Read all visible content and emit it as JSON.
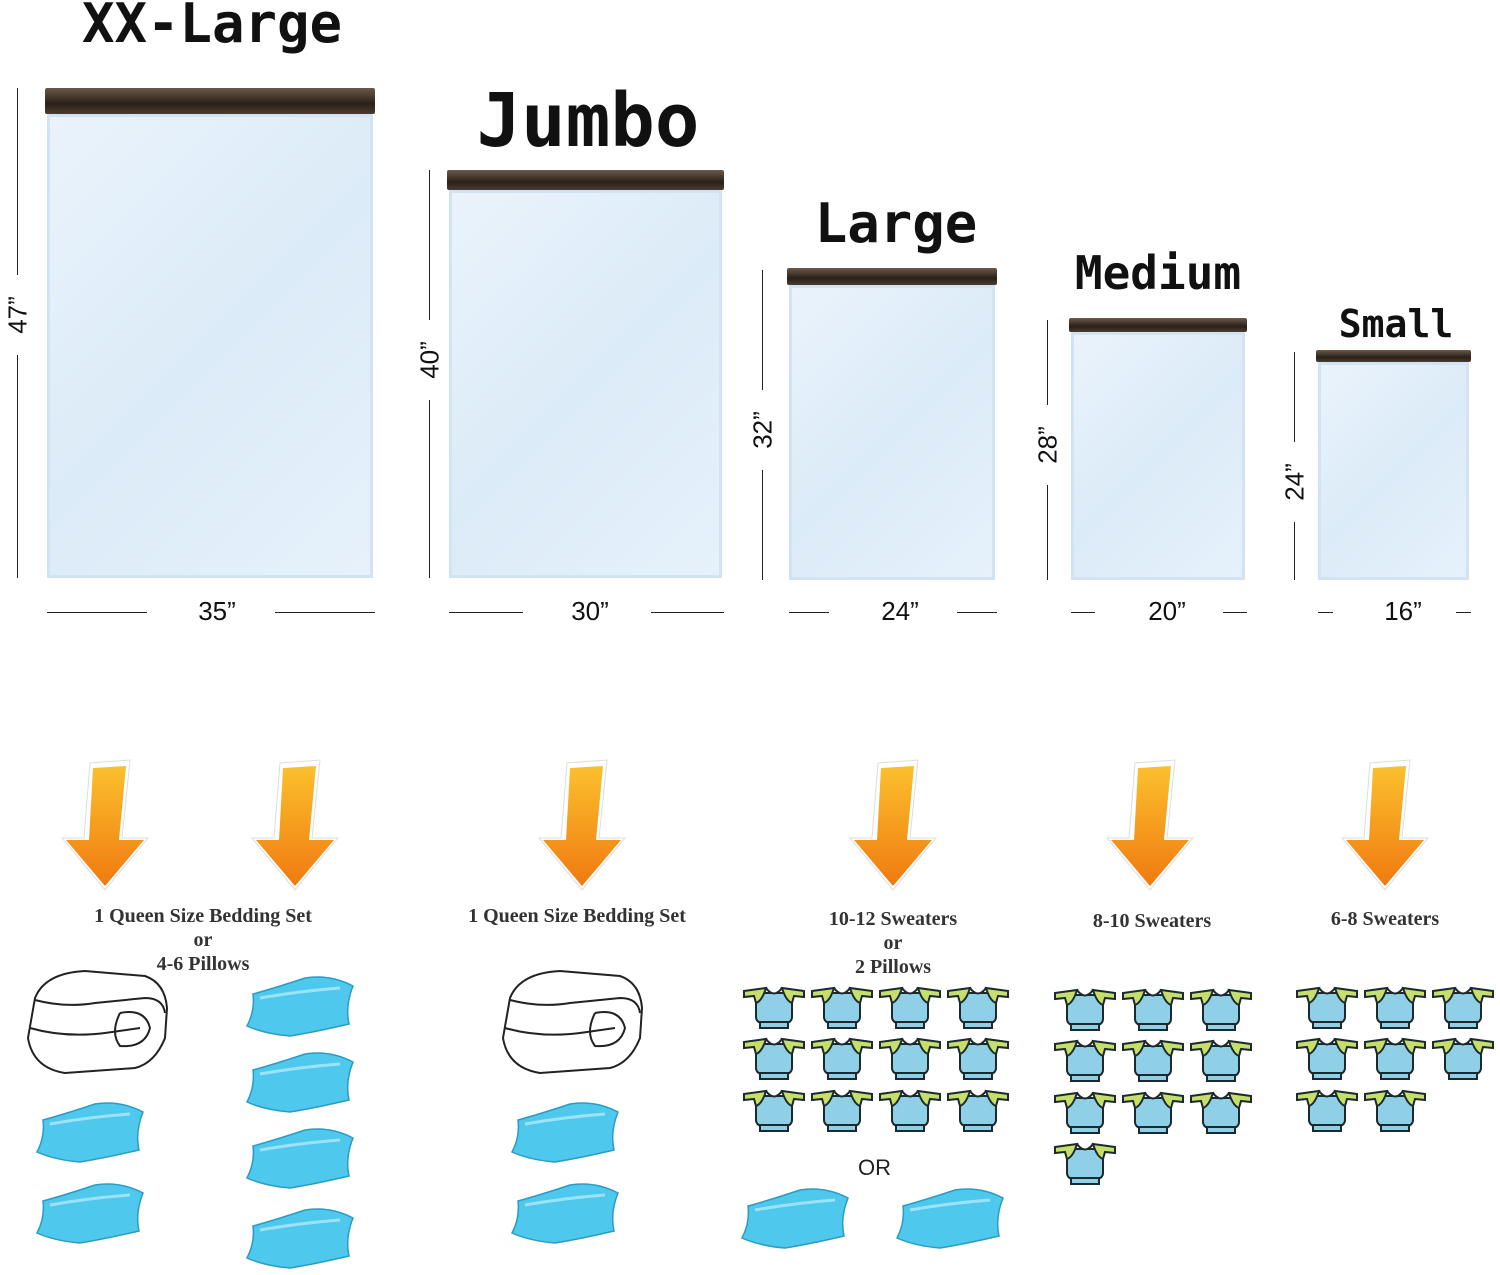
{
  "bags": [
    {
      "name": "XX-Large",
      "height": "47”",
      "width": "35”"
    },
    {
      "name": "Jumbo",
      "height": "40”",
      "width": "30”"
    },
    {
      "name": "Large",
      "height": "32”",
      "width": "24”"
    },
    {
      "name": "Medium",
      "height": "28”",
      "width": "20”"
    },
    {
      "name": "Small",
      "height": "24”",
      "width": "16”"
    }
  ],
  "captions": [
    {
      "lines": [
        "1 Queen Size Bedding Set",
        "or",
        "4-6 Pillows"
      ]
    },
    {
      "lines": [
        "1 Queen Size Bedding Set"
      ]
    },
    {
      "lines": [
        "10-12 Sweaters",
        "or",
        "2 Pillows"
      ]
    },
    {
      "lines": [
        "8-10 Sweaters"
      ]
    },
    {
      "lines": [
        "6-8 Sweaters"
      ]
    }
  ],
  "or_label": "OR",
  "colors": {
    "arrow": "#f07a10",
    "pillow": "#4fc8ee",
    "sweater_body": "#8fd0e6",
    "sweater_sleeve": "#c6df6a",
    "zipper": "#2a2019"
  },
  "icons": [
    "arrow-down-icon",
    "comforter-icon",
    "pillow-icon",
    "sweater-icon"
  ],
  "sweater_counts": {
    "large": 12,
    "medium": 10,
    "small": 8
  }
}
